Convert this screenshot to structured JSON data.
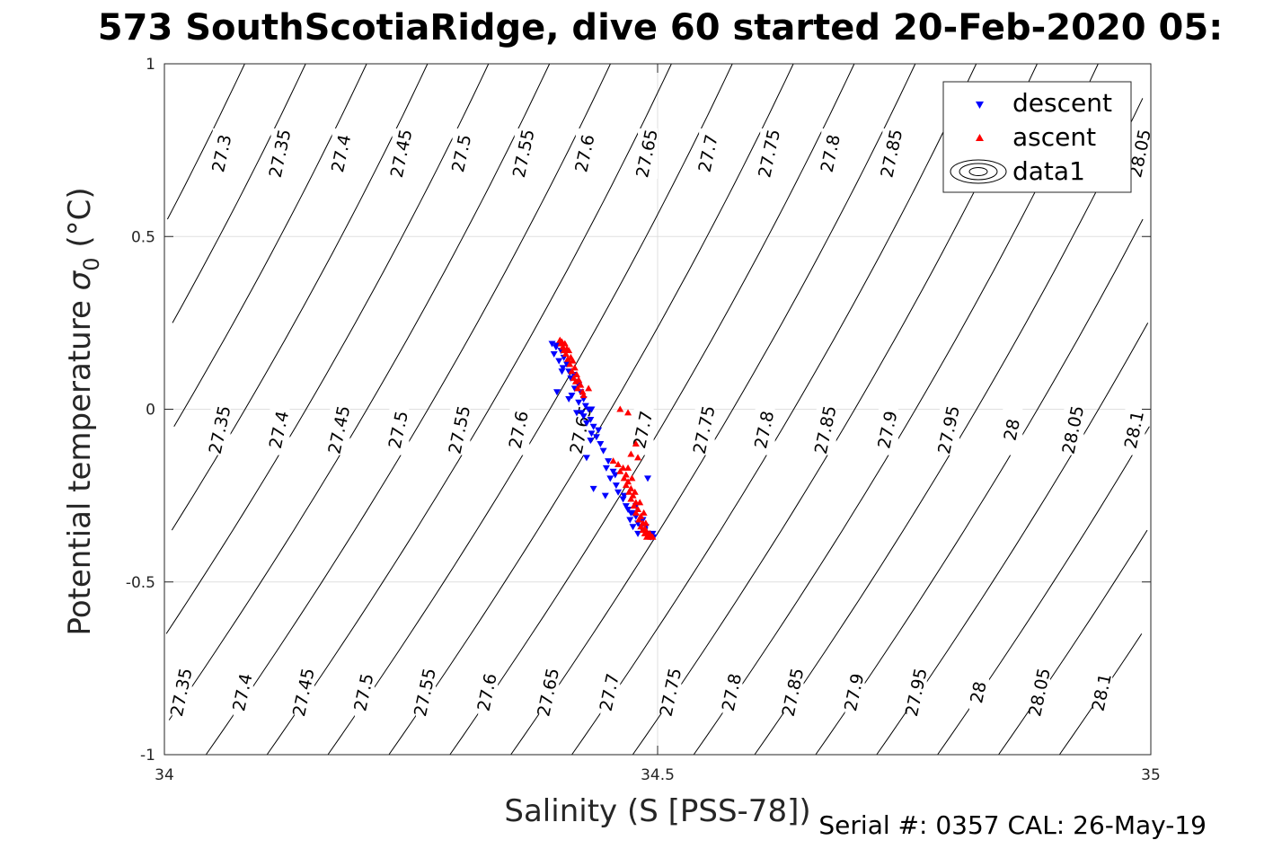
{
  "chart_data": {
    "type": "scatter",
    "title": "573 SouthScotiaRidge, dive 60 started 20-Feb-2020 05:",
    "xlabel": "Salinity (S [PSS-78])",
    "ylabel_main": "Potential temperature ",
    "ylabel_sigma": "σ",
    "ylabel_sub": "0",
    "ylabel_unit": " (°C)",
    "xlim": [
      34,
      35
    ],
    "ylim": [
      -1,
      1
    ],
    "x_ticks": [
      34,
      34.5,
      35
    ],
    "x_tick_labels": [
      "34",
      "34.5",
      "35"
    ],
    "y_ticks": [
      -1,
      -0.5,
      0,
      0.5,
      1
    ],
    "y_tick_labels": [
      "-1",
      "-0.5",
      "0",
      "0.5",
      "1"
    ],
    "grid": true,
    "legend_position": "top-right",
    "legend": [
      "descent",
      "ascent",
      "data1"
    ],
    "series": [
      {
        "name": "descent",
        "marker": "triangle-down",
        "color": "#0000ff",
        "points": [
          [
            34.393,
            0.19
          ],
          [
            34.398,
            0.185
          ],
          [
            34.402,
            0.17
          ],
          [
            34.395,
            0.16
          ],
          [
            34.405,
            0.15
          ],
          [
            34.4,
            0.14
          ],
          [
            34.408,
            0.13
          ],
          [
            34.404,
            0.12
          ],
          [
            34.41,
            0.11
          ],
          [
            34.415,
            0.1
          ],
          [
            34.412,
            0.09
          ],
          [
            34.418,
            0.08
          ],
          [
            34.42,
            0.07
          ],
          [
            34.416,
            0.06
          ],
          [
            34.422,
            0.05
          ],
          [
            34.398,
            0.05
          ],
          [
            34.425,
            0.03
          ],
          [
            34.41,
            0.03
          ],
          [
            34.42,
            0.02
          ],
          [
            34.427,
            0.01
          ],
          [
            34.43,
            0.0
          ],
          [
            34.418,
            -0.01
          ],
          [
            34.425,
            -0.02
          ],
          [
            34.432,
            -0.03
          ],
          [
            34.428,
            -0.04
          ],
          [
            34.435,
            -0.05
          ],
          [
            34.44,
            -0.06
          ],
          [
            34.433,
            -0.07
          ],
          [
            34.438,
            -0.08
          ],
          [
            34.442,
            -0.1
          ],
          [
            34.445,
            -0.12
          ],
          [
            34.432,
            -0.09
          ],
          [
            34.45,
            -0.15
          ],
          [
            34.448,
            -0.17
          ],
          [
            34.455,
            -0.18
          ],
          [
            34.452,
            -0.2
          ],
          [
            34.458,
            -0.22
          ],
          [
            34.435,
            -0.23
          ],
          [
            34.46,
            -0.24
          ],
          [
            34.465,
            -0.26
          ],
          [
            34.468,
            -0.28
          ],
          [
            34.47,
            -0.29
          ],
          [
            34.475,
            -0.3
          ],
          [
            34.478,
            -0.31
          ],
          [
            34.472,
            -0.32
          ],
          [
            34.48,
            -0.33
          ],
          [
            34.483,
            -0.34
          ],
          [
            34.487,
            -0.35
          ],
          [
            34.49,
            -0.36
          ],
          [
            34.493,
            -0.37
          ],
          [
            34.496,
            -0.37
          ],
          [
            34.48,
            -0.36
          ],
          [
            34.475,
            -0.34
          ],
          [
            34.447,
            -0.25
          ],
          [
            34.428,
            -0.14
          ],
          [
            34.473,
            -0.3
          ],
          [
            34.485,
            -0.32
          ],
          [
            34.478,
            -0.28
          ],
          [
            34.466,
            -0.25
          ],
          [
            34.457,
            -0.19
          ],
          [
            34.488,
            -0.34
          ],
          [
            34.495,
            -0.36
          ],
          [
            34.433,
            0.0
          ],
          [
            34.423,
            -0.01
          ],
          [
            34.413,
            0.04
          ],
          [
            34.403,
            0.11
          ],
          [
            34.397,
            0.18
          ],
          [
            34.49,
            -0.2
          ]
        ]
      },
      {
        "name": "ascent",
        "marker": "triangle-up",
        "color": "#ff0000",
        "points": [
          [
            34.401,
            0.2
          ],
          [
            34.403,
            0.195
          ],
          [
            34.406,
            0.19
          ],
          [
            34.404,
            0.18
          ],
          [
            34.408,
            0.175
          ],
          [
            34.41,
            0.17
          ],
          [
            34.407,
            0.16
          ],
          [
            34.412,
            0.15
          ],
          [
            34.409,
            0.145
          ],
          [
            34.414,
            0.14
          ],
          [
            34.411,
            0.13
          ],
          [
            34.416,
            0.12
          ],
          [
            34.413,
            0.11
          ],
          [
            34.418,
            0.1
          ],
          [
            34.415,
            0.09
          ],
          [
            34.42,
            0.085
          ],
          [
            34.417,
            0.08
          ],
          [
            34.422,
            0.07
          ],
          [
            34.419,
            0.06
          ],
          [
            34.405,
            0.17
          ],
          [
            34.402,
            0.19
          ],
          [
            34.424,
            0.05
          ],
          [
            34.43,
            0.06
          ],
          [
            34.425,
            0.04
          ],
          [
            34.47,
            -0.01
          ],
          [
            34.462,
            0.0
          ],
          [
            34.455,
            -0.15
          ],
          [
            34.46,
            -0.16
          ],
          [
            34.465,
            -0.17
          ],
          [
            34.462,
            -0.18
          ],
          [
            34.468,
            -0.19
          ],
          [
            34.466,
            -0.2
          ],
          [
            34.47,
            -0.21
          ],
          [
            34.468,
            -0.22
          ],
          [
            34.473,
            -0.23
          ],
          [
            34.471,
            -0.24
          ],
          [
            34.475,
            -0.25
          ],
          [
            34.473,
            -0.26
          ],
          [
            34.478,
            -0.27
          ],
          [
            34.476,
            -0.28
          ],
          [
            34.48,
            -0.29
          ],
          [
            34.478,
            -0.3
          ],
          [
            34.483,
            -0.31
          ],
          [
            34.481,
            -0.32
          ],
          [
            34.485,
            -0.33
          ],
          [
            34.483,
            -0.34
          ],
          [
            34.487,
            -0.345
          ],
          [
            34.485,
            -0.35
          ],
          [
            34.489,
            -0.355
          ],
          [
            34.487,
            -0.36
          ],
          [
            34.491,
            -0.365
          ],
          [
            34.489,
            -0.37
          ],
          [
            34.493,
            -0.37
          ],
          [
            34.495,
            -0.37
          ],
          [
            34.478,
            -0.1
          ],
          [
            34.473,
            -0.13
          ],
          [
            34.48,
            -0.14
          ],
          [
            34.47,
            -0.17
          ],
          [
            34.474,
            -0.2
          ],
          [
            34.477,
            -0.24
          ],
          [
            34.482,
            -0.27
          ],
          [
            34.486,
            -0.3
          ],
          [
            34.488,
            -0.33
          ],
          [
            34.492,
            -0.36
          ]
        ]
      }
    ],
    "contour_levels": [
      "27.3",
      "27.35",
      "27.4",
      "27.45",
      "27.5",
      "27.55",
      "27.6",
      "27.65",
      "27.7",
      "27.75",
      "27.8",
      "27.85",
      "27.9",
      "27.95",
      "28",
      "28.05",
      "28.1"
    ],
    "contour_labels_top": [
      [
        "27.3",
        34.059
      ],
      [
        "27.35",
        34.118
      ],
      [
        "27.4",
        34.18
      ],
      [
        "27.45",
        34.241
      ],
      [
        "27.5",
        34.302
      ],
      [
        "27.55",
        34.365
      ],
      [
        "27.6",
        34.427
      ],
      [
        "27.65",
        34.49
      ],
      [
        "27.7",
        34.552
      ],
      [
        "27.75",
        34.614
      ],
      [
        "27.8",
        34.676
      ],
      [
        "27.85",
        34.738
      ],
      [
        "28.05",
        34.99
      ]
    ],
    "contour_labels_mid": [
      [
        "27.35",
        34.057
      ],
      [
        "27.4",
        34.117
      ],
      [
        "27.45",
        34.178
      ],
      [
        "27.5",
        34.238
      ],
      [
        "27.55",
        34.3
      ],
      [
        "27.6",
        34.36
      ],
      [
        "27.65",
        34.423
      ],
      [
        "27.7",
        34.486
      ],
      [
        "27.75",
        34.548
      ],
      [
        "27.8",
        34.609
      ],
      [
        "27.85",
        34.671
      ],
      [
        "27.9",
        34.734
      ],
      [
        "27.95",
        34.796
      ],
      [
        "28",
        34.86
      ],
      [
        "28.05",
        34.922
      ],
      [
        "28.1",
        34.984
      ]
    ],
    "contour_labels_bot": [
      [
        "27.35",
        34.018
      ],
      [
        "27.4",
        34.08
      ],
      [
        "27.45",
        34.142
      ],
      [
        "27.5",
        34.203
      ],
      [
        "27.55",
        34.265
      ],
      [
        "27.6",
        34.328
      ],
      [
        "27.65",
        34.39
      ],
      [
        "27.7",
        34.452
      ],
      [
        "27.75",
        34.514
      ],
      [
        "27.8",
        34.576
      ],
      [
        "27.85",
        34.638
      ],
      [
        "27.9",
        34.7
      ],
      [
        "27.95",
        34.763
      ],
      [
        "28",
        34.826
      ],
      [
        "28.05",
        34.888
      ],
      [
        "28.1",
        34.951
      ]
    ]
  },
  "footer": {
    "serial": "Serial #: 0357  CAL: 26-May-19"
  },
  "colors": {
    "descent": "#0000ff",
    "ascent": "#ff0000",
    "grid": "#dfdfdf",
    "axis": "#262626"
  }
}
